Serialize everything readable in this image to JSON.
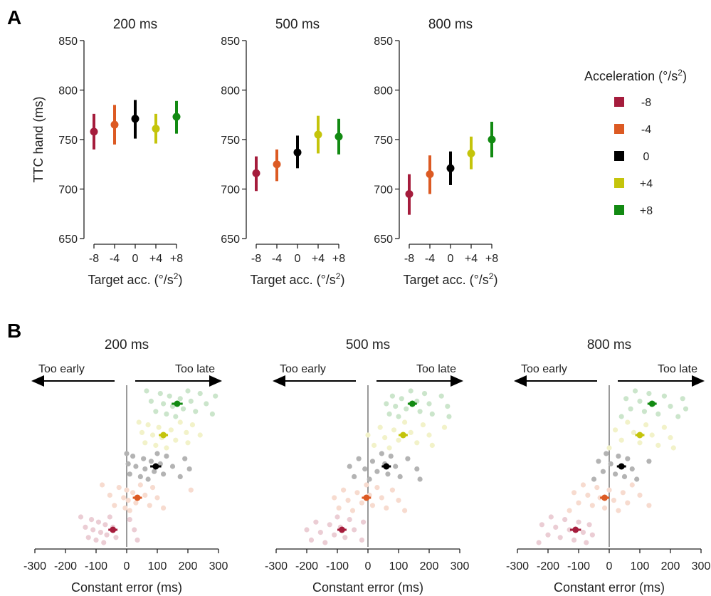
{
  "panels": {
    "a_letter": "A",
    "b_letter": "B"
  },
  "legend": {
    "title": "Acceleration (°/s",
    "title_sup": "2",
    "title_close": ")",
    "entries": [
      {
        "label": "-8",
        "color": "#a51c3c"
      },
      {
        "label": "-4",
        "color": "#dc5a23"
      },
      {
        "label": "0",
        "color": "#000000"
      },
      {
        "label": "+4",
        "color": "#c4c40b"
      },
      {
        "label": "+8",
        "color": "#128a12"
      }
    ]
  },
  "chart_data": [
    {
      "type": "scatter",
      "panel": "A",
      "title": "200 ms",
      "xlabel": "Target acc. (°/s",
      "xlabel_sup": "2",
      "xlabel_close": ")",
      "ylabel": "TTC hand (ms)",
      "ylim": [
        650,
        850
      ],
      "yticks": [
        "650",
        "700",
        "750",
        "800",
        "850"
      ],
      "categories": [
        "-8",
        "-4",
        "0",
        "+4",
        "+8"
      ],
      "series": [
        {
          "category": "-8",
          "mean": 758,
          "lo": 740,
          "hi": 776,
          "color": "#a51c3c"
        },
        {
          "category": "-4",
          "mean": 765,
          "lo": 745,
          "hi": 785,
          "color": "#dc5a23"
        },
        {
          "category": "0",
          "mean": 771,
          "lo": 751,
          "hi": 790,
          "color": "#000000"
        },
        {
          "category": "+4",
          "mean": 761,
          "lo": 746,
          "hi": 776,
          "color": "#c4c40b"
        },
        {
          "category": "+8",
          "mean": 773,
          "lo": 756,
          "hi": 789,
          "color": "#128a12"
        }
      ]
    },
    {
      "type": "scatter",
      "panel": "A",
      "title": "500 ms",
      "xlabel": "Target acc. (°/s",
      "xlabel_sup": "2",
      "xlabel_close": ")",
      "ylabel": "",
      "ylim": [
        650,
        850
      ],
      "yticks": [
        "650",
        "700",
        "750",
        "800",
        "850"
      ],
      "categories": [
        "-8",
        "-4",
        "0",
        "+4",
        "+8"
      ],
      "series": [
        {
          "category": "-8",
          "mean": 716,
          "lo": 698,
          "hi": 733,
          "color": "#a51c3c"
        },
        {
          "category": "-4",
          "mean": 725,
          "lo": 708,
          "hi": 740,
          "color": "#dc5a23"
        },
        {
          "category": "0",
          "mean": 737,
          "lo": 721,
          "hi": 754,
          "color": "#000000"
        },
        {
          "category": "+4",
          "mean": 755,
          "lo": 736,
          "hi": 774,
          "color": "#c4c40b"
        },
        {
          "category": "+8",
          "mean": 753,
          "lo": 735,
          "hi": 771,
          "color": "#128a12"
        }
      ]
    },
    {
      "type": "scatter",
      "panel": "A",
      "title": "800 ms",
      "xlabel": "Target acc. (°/s",
      "xlabel_sup": "2",
      "xlabel_close": ")",
      "ylabel": "",
      "ylim": [
        650,
        850
      ],
      "yticks": [
        "650",
        "700",
        "750",
        "800",
        "850"
      ],
      "categories": [
        "-8",
        "-4",
        "0",
        "+4",
        "+8"
      ],
      "series": [
        {
          "category": "-8",
          "mean": 695,
          "lo": 674,
          "hi": 715,
          "color": "#a51c3c"
        },
        {
          "category": "-4",
          "mean": 715,
          "lo": 695,
          "hi": 734,
          "color": "#dc5a23"
        },
        {
          "category": "0",
          "mean": 721,
          "lo": 704,
          "hi": 738,
          "color": "#000000"
        },
        {
          "category": "+4",
          "mean": 736,
          "lo": 720,
          "hi": 753,
          "color": "#c4c40b"
        },
        {
          "category": "+8",
          "mean": 750,
          "lo": 732,
          "hi": 768,
          "color": "#128a12"
        }
      ]
    },
    {
      "type": "scatter",
      "panel": "B",
      "title": "200 ms",
      "xlabel": "Constant error (ms)",
      "xlim": [
        -300,
        300
      ],
      "xticks": [
        "-300",
        "-200",
        "-100",
        "0",
        "100",
        "200",
        "300"
      ],
      "annotation_left": "Too early",
      "annotation_right": "Too late",
      "series": [
        {
          "name": "-8",
          "color": "#a51c3c",
          "mean": -45,
          "err": 15,
          "points": [
            -150,
            -135,
            -125,
            -115,
            -110,
            -100,
            -92,
            -85,
            -75,
            -70,
            -65,
            -55,
            -45,
            -35,
            10,
            25,
            35
          ]
        },
        {
          "name": "-4",
          "color": "#dc5a23",
          "mean": 35,
          "err": 15,
          "points": [
            -80,
            -55,
            -40,
            -25,
            -10,
            -5,
            0,
            5,
            10,
            20,
            30,
            45,
            60,
            75,
            85,
            100,
            120,
            210
          ]
        },
        {
          "name": "0",
          "color": "#000000",
          "mean": 95,
          "err": 18,
          "points": [
            0,
            5,
            10,
            20,
            30,
            45,
            55,
            60,
            70,
            80,
            90,
            100,
            110,
            120,
            130,
            150,
            175,
            190,
            205
          ]
        },
        {
          "name": "+4",
          "color": "#c4c40b",
          "mean": 120,
          "err": 15,
          "points": [
            40,
            50,
            60,
            70,
            85,
            95,
            105,
            115,
            130,
            145,
            160,
            175,
            195,
            200,
            215,
            240
          ]
        },
        {
          "name": "+8",
          "color": "#128a12",
          "mean": 165,
          "err": 18,
          "points": [
            65,
            80,
            95,
            110,
            120,
            130,
            140,
            150,
            160,
            175,
            185,
            200,
            210,
            225,
            240,
            260,
            280,
            290
          ]
        }
      ]
    },
    {
      "type": "scatter",
      "panel": "B",
      "title": "500 ms",
      "xlabel": "Constant error (ms)",
      "xlim": [
        -300,
        300
      ],
      "xticks": [
        "-300",
        "-200",
        "-100",
        "0",
        "100",
        "200",
        "300"
      ],
      "annotation_left": "Too early",
      "annotation_right": "Too late",
      "series": [
        {
          "name": "-8",
          "color": "#a51c3c",
          "mean": -85,
          "err": 15,
          "points": [
            -200,
            -185,
            -170,
            -155,
            -140,
            -125,
            -110,
            -100,
            -90,
            -75,
            -60,
            -45,
            -20,
            -15
          ]
        },
        {
          "name": "-4",
          "color": "#dc5a23",
          "mean": -5,
          "err": 15,
          "points": [
            -110,
            -95,
            -80,
            -65,
            -50,
            -35,
            -20,
            -5,
            5,
            15,
            30,
            45,
            60,
            80,
            100,
            120
          ]
        },
        {
          "name": "0",
          "color": "#000000",
          "mean": 60,
          "err": 15,
          "points": [
            -60,
            -45,
            -30,
            -10,
            5,
            15,
            30,
            45,
            55,
            65,
            75,
            90,
            105,
            130,
            160,
            170
          ]
        },
        {
          "name": "+4",
          "color": "#c4c40b",
          "mean": 115,
          "err": 15,
          "points": [
            0,
            20,
            40,
            55,
            70,
            85,
            100,
            120,
            140,
            160,
            180,
            200,
            210,
            250
          ]
        },
        {
          "name": "+8",
          "color": "#128a12",
          "mean": 145,
          "err": 15,
          "points": [
            60,
            70,
            80,
            90,
            100,
            110,
            125,
            140,
            160,
            170,
            185,
            200,
            210,
            240,
            260,
            265
          ]
        }
      ]
    },
    {
      "type": "scatter",
      "panel": "B",
      "title": "800 ms",
      "xlabel": "Constant error (ms)",
      "xlim": [
        -300,
        300
      ],
      "xticks": [
        "-300",
        "-200",
        "-100",
        "0",
        "100",
        "200",
        "300"
      ],
      "annotation_left": "Too early",
      "annotation_right": "Too late",
      "series": [
        {
          "name": "-8",
          "color": "#a51c3c",
          "mean": -110,
          "err": 18,
          "points": [
            -230,
            -220,
            -200,
            -190,
            -175,
            -160,
            -145,
            -130,
            -115,
            -100,
            -85,
            -75,
            -65,
            -55
          ]
        },
        {
          "name": "-4",
          "color": "#dc5a23",
          "mean": -15,
          "err": 15,
          "points": [
            -130,
            -115,
            -100,
            -85,
            -70,
            -55,
            -40,
            -30,
            -15,
            0,
            15,
            30,
            45,
            60,
            75,
            100,
            130
          ]
        },
        {
          "name": "0",
          "color": "#000000",
          "mean": 40,
          "err": 15,
          "points": [
            -50,
            -35,
            -20,
            -10,
            5,
            20,
            30,
            40,
            50,
            60,
            75,
            90,
            130
          ]
        },
        {
          "name": "+4",
          "color": "#c4c40b",
          "mean": 100,
          "err": 15,
          "points": [
            0,
            20,
            40,
            60,
            80,
            100,
            120,
            140,
            160,
            180,
            200,
            210
          ]
        },
        {
          "name": "+8",
          "color": "#128a12",
          "mean": 140,
          "err": 15,
          "points": [
            40,
            55,
            70,
            85,
            100,
            115,
            130,
            145,
            160,
            180,
            200,
            225,
            240,
            250
          ]
        }
      ]
    }
  ]
}
